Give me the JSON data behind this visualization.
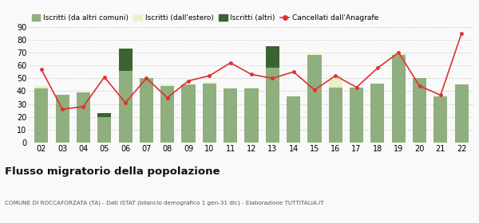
{
  "years": [
    "02",
    "03",
    "04",
    "05",
    "06",
    "07",
    "08",
    "09",
    "10",
    "11",
    "12",
    "13",
    "14",
    "15",
    "16",
    "17",
    "18",
    "19",
    "20",
    "21",
    "22"
  ],
  "iscritti_altri_comuni": [
    42,
    37,
    39,
    20,
    56,
    50,
    44,
    45,
    46,
    42,
    42,
    58,
    36,
    68,
    43,
    43,
    46,
    68,
    50,
    36,
    45
  ],
  "iscritti_estero": [
    2,
    0,
    0,
    0,
    0,
    0,
    1,
    0,
    1,
    0,
    1,
    0,
    0,
    1,
    9,
    0,
    0,
    2,
    0,
    0,
    0
  ],
  "iscritti_altri": [
    0,
    0,
    0,
    3,
    17,
    0,
    0,
    0,
    0,
    0,
    0,
    17,
    0,
    0,
    0,
    0,
    0,
    0,
    0,
    0,
    0
  ],
  "cancellati": [
    57,
    26,
    28,
    51,
    31,
    50,
    35,
    48,
    52,
    62,
    53,
    50,
    55,
    41,
    52,
    43,
    58,
    70,
    44,
    37,
    85
  ],
  "color_altri_comuni": "#8faf7e",
  "color_estero": "#e8f0c8",
  "color_altri": "#3a6330",
  "color_cancellati": "#e03030",
  "title": "Flusso migratorio della popolazione",
  "subtitle": "COMUNE DI ROCCAFORZATA (TA) - Dati ISTAT (bilancio demografico 1 gen-31 dic) - Elaborazione TUTTITALIA.IT",
  "legend_labels": [
    "Iscritti (da altri comuni)",
    "Iscritti (dall'estero)",
    "Iscritti (altri)",
    "Cancellati dall'Anagrafe"
  ],
  "ylim": [
    0,
    90
  ],
  "yticks": [
    0,
    10,
    20,
    30,
    40,
    50,
    60,
    70,
    80,
    90
  ],
  "background_color": "#f9f9f9"
}
